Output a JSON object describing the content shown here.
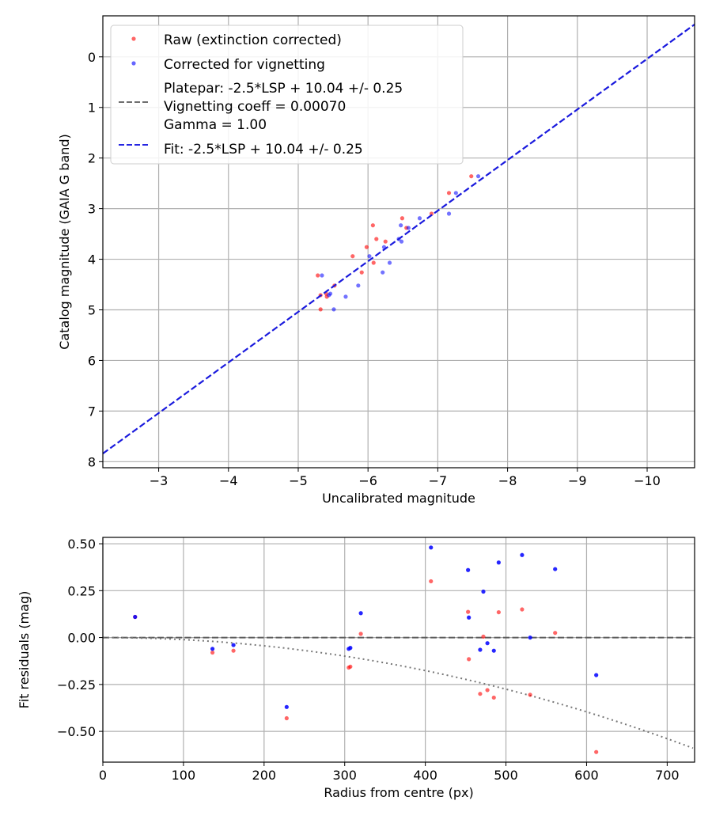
{
  "chart_data": [
    {
      "type": "scatter",
      "xlabel": "Uncalibrated magnitude",
      "ylabel": "Catalog magnitude (GAIA G band)",
      "xlim": [
        -2.2,
        -10.68
      ],
      "ylim": [
        8.12,
        -0.81
      ],
      "x_inverted": true,
      "y_inverted": true,
      "grid": true,
      "xticks": [
        -3,
        -4,
        -5,
        -6,
        -7,
        -8,
        -9,
        -10
      ],
      "xtick_labels": [
        "−3",
        "−4",
        "−5",
        "−6",
        "−7",
        "−8",
        "−9",
        "−10"
      ],
      "yticks": [
        0,
        1,
        2,
        3,
        4,
        5,
        6,
        7,
        8
      ],
      "ytick_labels": [
        "0",
        "1",
        "2",
        "3",
        "4",
        "5",
        "6",
        "7",
        "8"
      ],
      "legend_placement": "top-left",
      "legend": [
        {
          "label": "Raw (extinction corrected)",
          "kind": "marker",
          "color": "#ff0000"
        },
        {
          "label": "Corrected for vignetting",
          "kind": "marker",
          "color": "#0000ff"
        },
        {
          "label": "Platepar: -2.5*LSP + 10.04 +/- 0.25",
          "kind": "none"
        },
        {
          "label": "Vignetting coeff = 0.00070",
          "kind": "dashed",
          "color": "#555555"
        },
        {
          "label": "Gamma = 1.00",
          "kind": "none"
        },
        {
          "label": "Fit: -2.5*LSP + 10.04 +/- 0.25",
          "kind": "dashed",
          "color": "#0000dd"
        }
      ],
      "fit_line": {
        "slope": 1.0,
        "intercept": 10.04,
        "color": "#1a1add"
      },
      "series": [
        {
          "name": "Raw (extinction corrected)",
          "color": "#ff0000",
          "x": [
            -7.48,
            -7.16,
            -6.91,
            -6.49,
            -6.07,
            -6.55,
            -6.12,
            -6.25,
            -5.98,
            -5.78,
            -6.08,
            -5.91,
            -5.28,
            -5.52,
            -5.32,
            -5.41,
            -5.32,
            -5.4
          ],
          "y": [
            2.36,
            2.69,
            3.1,
            3.19,
            3.33,
            3.38,
            3.6,
            3.65,
            3.76,
            3.94,
            4.07,
            4.26,
            4.32,
            4.52,
            4.71,
            4.74,
            4.99,
            4.68
          ]
        },
        {
          "name": "Corrected for vignetting",
          "color": "#0000ff",
          "x": [
            -7.58,
            -7.26,
            -7.16,
            -6.74,
            -6.47,
            -6.58,
            -6.44,
            -6.48,
            -6.23,
            -6.02,
            -6.31,
            -6.21,
            -5.34,
            -5.86,
            -5.46,
            -5.44,
            -5.68,
            -5.51
          ],
          "y": [
            2.36,
            2.69,
            3.1,
            3.19,
            3.33,
            3.38,
            3.6,
            3.65,
            3.76,
            3.94,
            4.07,
            4.26,
            4.32,
            4.52,
            4.68,
            4.71,
            4.74,
            4.99
          ]
        }
      ]
    },
    {
      "type": "scatter",
      "xlabel": "Radius from centre (px)",
      "ylabel": "Fit residuals (mag)",
      "xlim": [
        0,
        734
      ],
      "ylim": [
        -0.664,
        0.534
      ],
      "grid": true,
      "xticks": [
        0,
        100,
        200,
        300,
        400,
        500,
        600,
        700
      ],
      "xtick_labels": [
        "0",
        "100",
        "200",
        "300",
        "400",
        "500",
        "600",
        "700"
      ],
      "yticks": [
        -0.5,
        -0.25,
        0,
        0.25,
        0.5
      ],
      "ytick_labels": [
        "−0.50",
        "−0.25",
        "0.00",
        "0.25",
        "0.50"
      ],
      "zero_line": {
        "y": 0,
        "style": "dashed",
        "color": "#555555"
      },
      "vignetting_curve": {
        "style": "dotted",
        "color": "#777777",
        "coeff_quadratic": -1.1e-06
      },
      "series": [
        {
          "name": "Raw",
          "color": "#ff0000",
          "x": [
            40,
            136,
            162,
            228,
            305,
            307,
            320,
            407,
            453,
            454,
            468,
            472,
            477,
            485,
            491,
            520,
            530,
            561,
            612
          ],
          "y": [
            0.11,
            -0.08,
            -0.07,
            -0.43,
            -0.16,
            -0.155,
            0.02,
            0.3,
            0.137,
            -0.115,
            -0.3,
            0.005,
            -0.28,
            -0.32,
            0.135,
            0.15,
            -0.305,
            0.025,
            -0.61
          ]
        },
        {
          "name": "Corrected",
          "color": "#0000ff",
          "x": [
            40,
            136,
            162,
            228,
            305,
            307,
            320,
            407,
            453,
            454,
            468,
            472,
            477,
            485,
            491,
            520,
            530,
            561,
            612
          ],
          "y": [
            0.11,
            -0.06,
            -0.04,
            -0.37,
            -0.06,
            -0.055,
            0.13,
            0.48,
            0.36,
            0.107,
            -0.065,
            0.245,
            -0.03,
            -0.07,
            0.4,
            0.44,
            0.0,
            0.365,
            -0.2
          ]
        }
      ]
    }
  ]
}
